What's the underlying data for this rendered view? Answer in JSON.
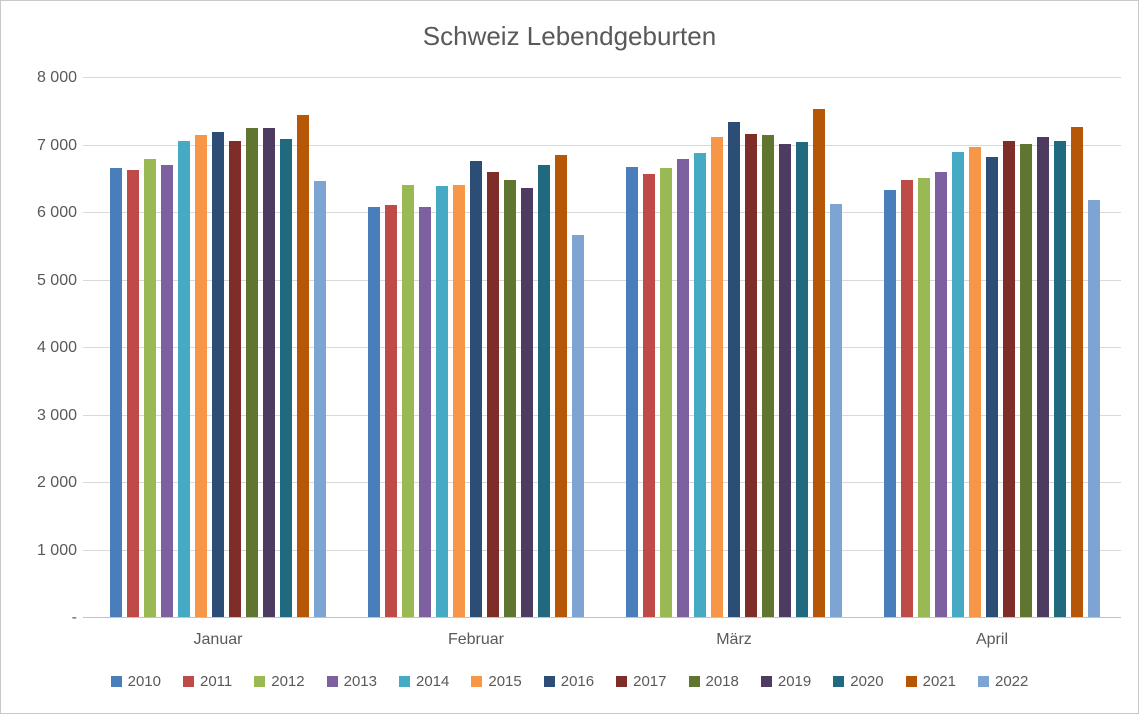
{
  "chart_data": {
    "type": "bar",
    "title": "Schweiz Lebendgeburten",
    "categories": [
      "Januar",
      "Februar",
      "März",
      "April"
    ],
    "series": [
      {
        "name": "2010",
        "color": "#4A7EBB",
        "values": [
          6650,
          6080,
          6670,
          6330
        ]
      },
      {
        "name": "2011",
        "color": "#BE4B48",
        "values": [
          6620,
          6110,
          6560,
          6480
        ]
      },
      {
        "name": "2012",
        "color": "#98B954",
        "values": [
          6790,
          6400,
          6650,
          6510
        ]
      },
      {
        "name": "2013",
        "color": "#7D60A0",
        "values": [
          6700,
          6070,
          6780,
          6590
        ]
      },
      {
        "name": "2014",
        "color": "#46AAC5",
        "values": [
          7050,
          6390,
          6870,
          6890
        ]
      },
      {
        "name": "2015",
        "color": "#F79646",
        "values": [
          7140,
          6400,
          7110,
          6970
        ]
      },
      {
        "name": "2016",
        "color": "#2C4D75",
        "values": [
          7180,
          6760,
          7330,
          6820
        ]
      },
      {
        "name": "2017",
        "color": "#7E2D28",
        "values": [
          7050,
          6590,
          7150,
          7050
        ]
      },
      {
        "name": "2018",
        "color": "#5F7530",
        "values": [
          7250,
          6480,
          7140,
          7010
        ]
      },
      {
        "name": "2019",
        "color": "#4E3B62",
        "values": [
          7250,
          6350,
          7000,
          7110
        ]
      },
      {
        "name": "2020",
        "color": "#20697E",
        "values": [
          7080,
          6700,
          7040,
          7050
        ]
      },
      {
        "name": "2021",
        "color": "#B65708",
        "values": [
          7440,
          6850,
          7520,
          7260
        ]
      },
      {
        "name": "2022",
        "color": "#7EA4D3",
        "values": [
          6460,
          5660,
          6120,
          6180
        ]
      }
    ],
    "ylim": [
      0,
      8000
    ],
    "y_ticks": [
      {
        "value": 8000,
        "label": "8 000"
      },
      {
        "value": 7000,
        "label": "7 000"
      },
      {
        "value": 6000,
        "label": "6 000"
      },
      {
        "value": 5000,
        "label": "5 000"
      },
      {
        "value": 4000,
        "label": "4 000"
      },
      {
        "value": 3000,
        "label": "3 000"
      },
      {
        "value": 2000,
        "label": "2 000"
      },
      {
        "value": 1000,
        "label": "1 000"
      },
      {
        "value": 0,
        "label": "-"
      }
    ],
    "grid": true,
    "legend_position": "bottom",
    "text_color": "#595959",
    "gridline_color": "#D9D9D9",
    "axis_line_color": "#C3C3C3"
  }
}
